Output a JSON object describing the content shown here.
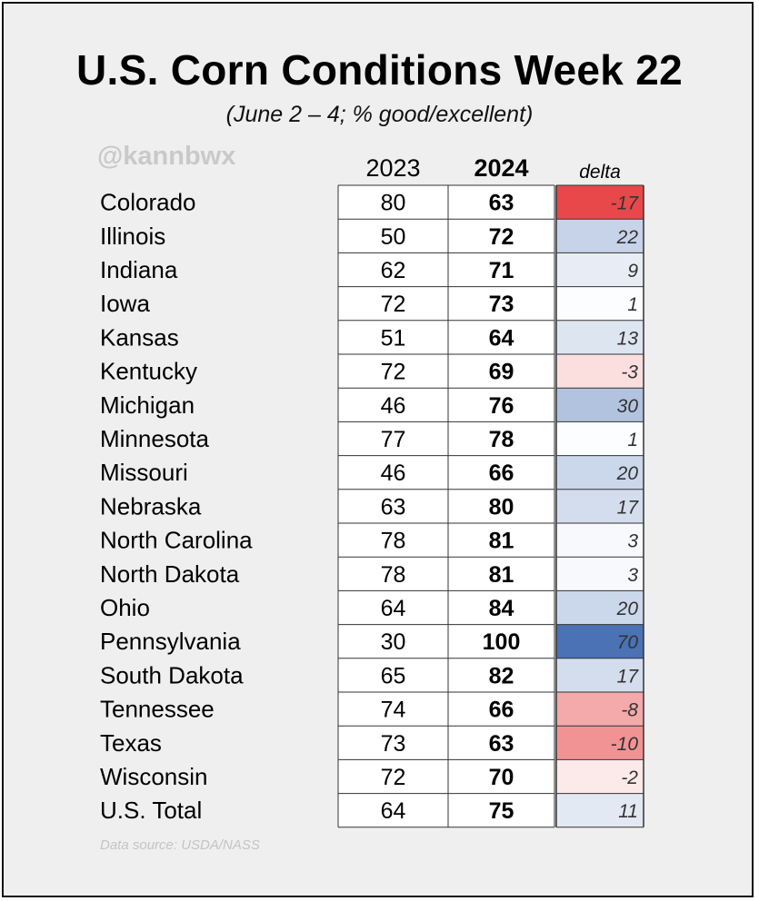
{
  "title": "U.S. Corn Conditions Week 22",
  "subtitle": "(June 2 – 4; % good/excellent)",
  "watermark": "@kannbwx",
  "source": "Data source: USDA/NASS",
  "colors": {
    "positive": "#4a72b5",
    "negative": "#e8484a",
    "neutral": "#ffffff"
  },
  "chart_data": {
    "type": "table",
    "columns": [
      "2023",
      "2024",
      "delta"
    ],
    "rows": [
      {
        "state": "Colorado",
        "y2023": 80,
        "y2024": 63,
        "delta": -17
      },
      {
        "state": "Illinois",
        "y2023": 50,
        "y2024": 72,
        "delta": 22
      },
      {
        "state": "Indiana",
        "y2023": 62,
        "y2024": 71,
        "delta": 9
      },
      {
        "state": "Iowa",
        "y2023": 72,
        "y2024": 73,
        "delta": 1
      },
      {
        "state": "Kansas",
        "y2023": 51,
        "y2024": 64,
        "delta": 13
      },
      {
        "state": "Kentucky",
        "y2023": 72,
        "y2024": 69,
        "delta": -3
      },
      {
        "state": "Michigan",
        "y2023": 46,
        "y2024": 76,
        "delta": 30
      },
      {
        "state": "Minnesota",
        "y2023": 77,
        "y2024": 78,
        "delta": 1
      },
      {
        "state": "Missouri",
        "y2023": 46,
        "y2024": 66,
        "delta": 20
      },
      {
        "state": "Nebraska",
        "y2023": 63,
        "y2024": 80,
        "delta": 17
      },
      {
        "state": "North Carolina",
        "y2023": 78,
        "y2024": 81,
        "delta": 3
      },
      {
        "state": "North Dakota",
        "y2023": 78,
        "y2024": 81,
        "delta": 3
      },
      {
        "state": "Ohio",
        "y2023": 64,
        "y2024": 84,
        "delta": 20
      },
      {
        "state": "Pennsylvania",
        "y2023": 30,
        "y2024": 100,
        "delta": 70
      },
      {
        "state": "South Dakota",
        "y2023": 65,
        "y2024": 82,
        "delta": 17
      },
      {
        "state": "Tennessee",
        "y2023": 74,
        "y2024": 66,
        "delta": -8
      },
      {
        "state": "Texas",
        "y2023": 73,
        "y2024": 63,
        "delta": -10
      },
      {
        "state": "Wisconsin",
        "y2023": 72,
        "y2024": 70,
        "delta": -2
      },
      {
        "state": "U.S. Total",
        "y2023": 64,
        "y2024": 75,
        "delta": 11
      }
    ]
  }
}
